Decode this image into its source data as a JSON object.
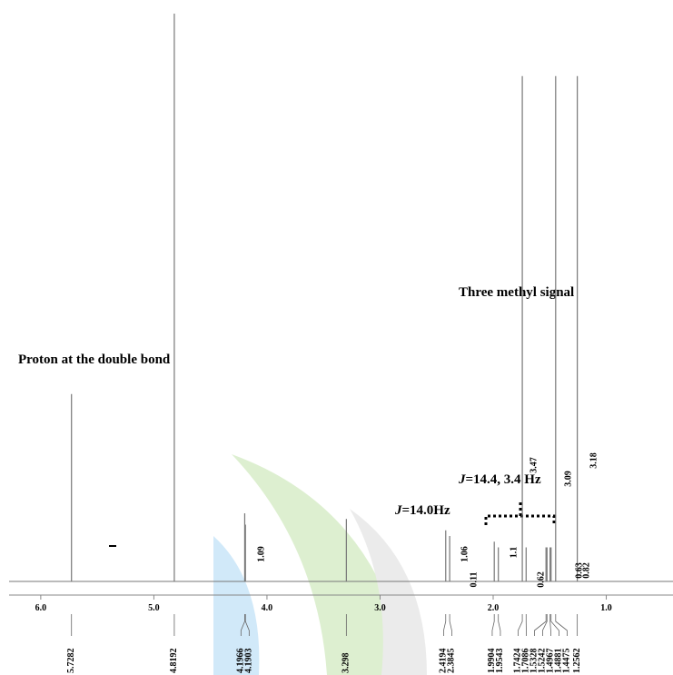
{
  "chart_data": {
    "type": "nmr",
    "xlim": [
      6.28,
      0.41
    ],
    "ylim": [
      0,
      100
    ],
    "xticks": [
      {
        "value": 6,
        "label": "6.0"
      },
      {
        "value": 5,
        "label": "5.0"
      },
      {
        "value": 4,
        "label": "4.0"
      },
      {
        "value": 3,
        "label": "3.0"
      },
      {
        "value": 2,
        "label": "2.0"
      },
      {
        "value": 1,
        "label": "1.0"
      }
    ],
    "color": "#777777",
    "peaks": {
      "x": [
        5.7282,
        4.8192,
        4.1966,
        4.1903,
        3.298,
        2.4194,
        2.3845,
        1.9904,
        1.9543,
        1.7424,
        1.7086,
        1.5328,
        1.5242,
        1.4967,
        1.4881,
        1.4475,
        1.2562
      ],
      "values": [
        33,
        100,
        12,
        10,
        11,
        9,
        8,
        7,
        6,
        89,
        6,
        6,
        6,
        6,
        6,
        89,
        89
      ]
    },
    "integrals": [
      1.09,
      1.06,
      0.11,
      1.1,
      3.47,
      0.62,
      3.09,
      0.63,
      0.82,
      3.18
    ],
    "annotations": [
      "Proton at the double bond",
      "Three methyl signal"
    ],
    "couplings": [
      {
        "symbol": "J",
        "text": "=14.4, 3.4 Hz"
      },
      {
        "symbol": "J",
        "text": "=14.0Hz"
      }
    ]
  }
}
